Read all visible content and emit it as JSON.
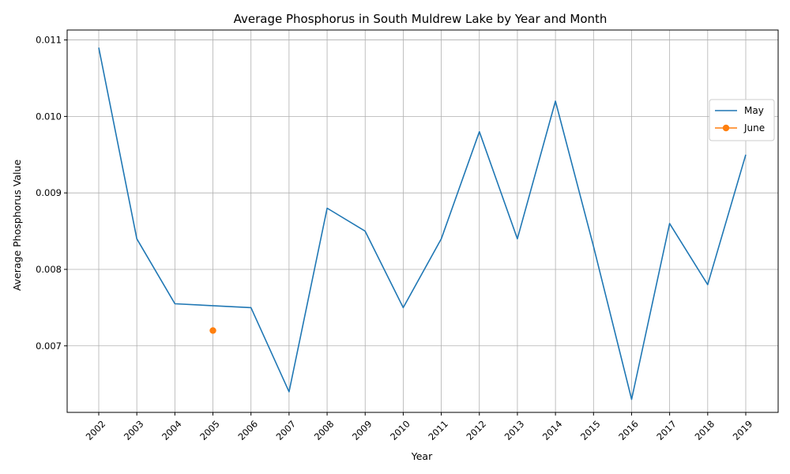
{
  "chart_data": {
    "type": "line",
    "title": "Average Phosphorus in South Muldrew Lake by Year and Month",
    "xlabel": "Year",
    "ylabel": "Average Phosphorus Value",
    "categories": [
      "2002",
      "2003",
      "2004",
      "2005",
      "2006",
      "2007",
      "2008",
      "2009",
      "2010",
      "2011",
      "2012",
      "2013",
      "2014",
      "2015",
      "2016",
      "2017",
      "2018",
      "2019"
    ],
    "ylim": [
      0.00613,
      0.01113
    ],
    "yticks": [
      "0.007",
      "0.008",
      "0.009",
      "0.010",
      "0.011"
    ],
    "grid": true,
    "legend_position": "top-right",
    "series": [
      {
        "name": "May",
        "color": "#1f77b4",
        "marker": "none",
        "points": [
          {
            "x": "2002",
            "y": 0.0109
          },
          {
            "x": "2003",
            "y": 0.0084
          },
          {
            "x": "2004",
            "y": 0.00755
          },
          {
            "x": "2006",
            "y": 0.0075
          },
          {
            "x": "2007",
            "y": 0.0064
          },
          {
            "x": "2008",
            "y": 0.0088
          },
          {
            "x": "2009",
            "y": 0.0085
          },
          {
            "x": "2010",
            "y": 0.0075
          },
          {
            "x": "2011",
            "y": 0.0084
          },
          {
            "x": "2012",
            "y": 0.0098
          },
          {
            "x": "2013",
            "y": 0.0084
          },
          {
            "x": "2014",
            "y": 0.0102
          },
          {
            "x": "2015",
            "y": 0.0083
          },
          {
            "x": "2016",
            "y": 0.0063
          },
          {
            "x": "2017",
            "y": 0.0086
          },
          {
            "x": "2018",
            "y": 0.0078
          },
          {
            "x": "2019",
            "y": 0.0095
          }
        ]
      },
      {
        "name": "June",
        "color": "#ff7f0e",
        "marker": "circle",
        "points": [
          {
            "x": "2005",
            "y": 0.0072
          }
        ]
      }
    ]
  }
}
